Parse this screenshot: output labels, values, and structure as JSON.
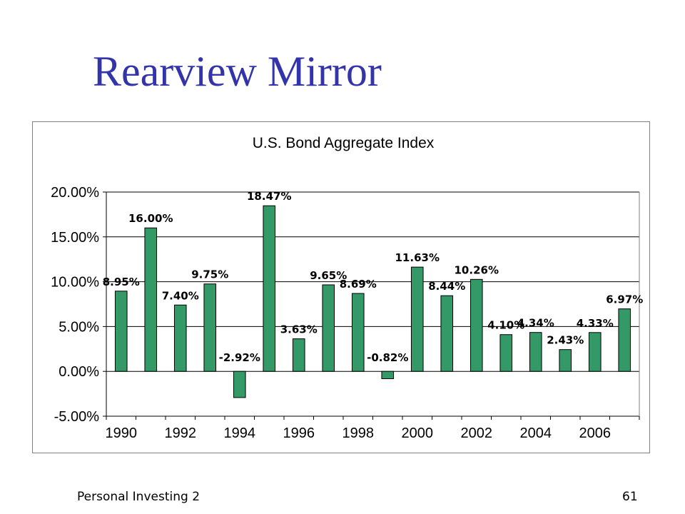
{
  "slide": {
    "title": "Rearview Mirror",
    "footer_left": "Personal Investing 2",
    "page_number": "61"
  },
  "chart_data": {
    "type": "bar",
    "title": "U.S. Bond Aggregate Index",
    "xlabel": "",
    "ylabel": "",
    "ylim": [
      -5,
      20
    ],
    "y_ticks": [
      "-5.00%",
      "0.00%",
      "5.00%",
      "10.00%",
      "15.00%",
      "20.00%"
    ],
    "x_tick_labels": [
      "1990",
      "1992",
      "1994",
      "1996",
      "1998",
      "2000",
      "2002",
      "2004",
      "2006"
    ],
    "categories": [
      "1990",
      "1991",
      "1992",
      "1993",
      "1994",
      "1995",
      "1996",
      "1997",
      "1998",
      "1999",
      "2000",
      "2001",
      "2002",
      "2003",
      "2004",
      "2005",
      "2006",
      "2007"
    ],
    "values": [
      8.95,
      16.0,
      7.4,
      9.75,
      -2.92,
      18.47,
      3.63,
      9.65,
      8.69,
      -0.82,
      11.63,
      8.44,
      10.26,
      4.1,
      4.34,
      2.43,
      4.33,
      6.97
    ],
    "data_labels": [
      "8.95%",
      "16.00%",
      "7.40%",
      "9.75%",
      "-2.92%",
      "18.47%",
      "3.63%",
      "9.65%",
      "8.69%",
      "-0.82%",
      "11.63%",
      "8.44%",
      "10.26%",
      "4.10%",
      "4.34%",
      "2.43%",
      "4.33%",
      "6.97%"
    ],
    "grid": true,
    "legend": "none",
    "bar_color": "#339966",
    "bar_border_color": "#000000"
  }
}
